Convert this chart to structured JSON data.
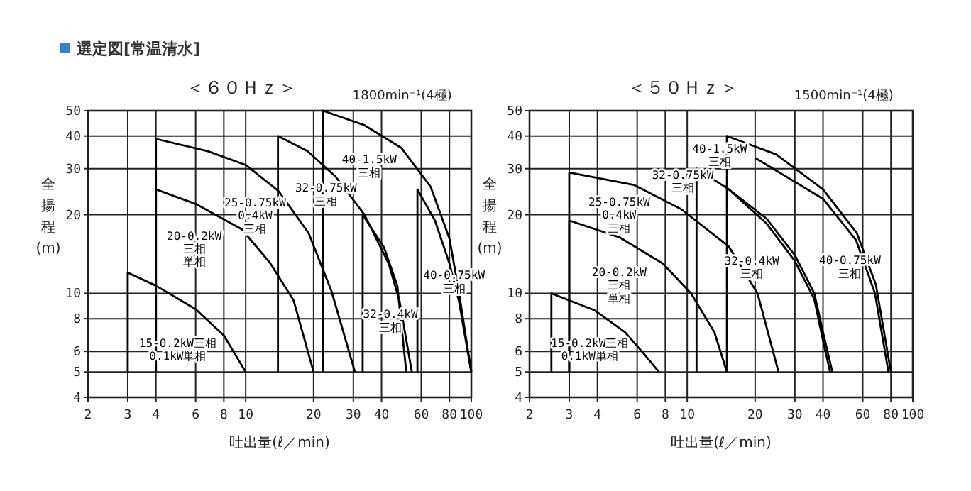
{
  "chart_data": [
    {
      "type": "line",
      "title": "＜６０Ｈｚ＞",
      "subtitle": "1800min⁻¹(4極)",
      "xlabel": "吐出量(ℓ／min)",
      "ylabel": "全揚程(m)",
      "log": "xy",
      "grid": true,
      "xlim": [
        2,
        100
      ],
      "ylim": [
        4,
        50
      ],
      "xticks": [
        2,
        3,
        4,
        6,
        8,
        10,
        20,
        30,
        40,
        60,
        80,
        100
      ],
      "yticks": [
        4,
        5,
        6,
        8,
        10,
        20,
        30,
        40,
        50
      ],
      "series": [
        {
          "color": "#000000",
          "x": [
            3,
            3,
            4,
            6,
            8,
            10
          ],
          "values": [
            5,
            12,
            10.7,
            8.7,
            6.9,
            5
          ]
        },
        {
          "color": "#000000",
          "x": [
            4,
            4,
            6,
            9.6,
            12.8,
            16.3,
            20
          ],
          "values": [
            5,
            25,
            22,
            17.6,
            13.1,
            9.4,
            5
          ]
        },
        {
          "color": "#000000",
          "x": [
            4,
            4,
            6.8,
            10,
            14,
            19,
            24,
            30.5
          ],
          "values": [
            5,
            39,
            35,
            31,
            24.6,
            17,
            10.2,
            5
          ]
        },
        {
          "color": "#000000",
          "x": [
            13.9,
            13.9,
            18.8,
            25,
            33.6,
            43,
            48,
            54.5
          ],
          "values": [
            5,
            40,
            35,
            28,
            20,
            13,
            9.4,
            5
          ]
        },
        {
          "color": "#000000",
          "x": [
            33,
            33,
            41,
            47,
            51.5
          ],
          "values": [
            5,
            20,
            15,
            10.7,
            5
          ]
        },
        {
          "color": "#000000",
          "x": [
            22,
            22,
            33.6,
            49,
            66,
            80,
            88,
            100
          ],
          "values": [
            5,
            50,
            44,
            36,
            25.6,
            16.2,
            10.2,
            5
          ]
        },
        {
          "color": "#000000",
          "x": [
            57.7,
            57.7,
            69,
            80,
            88,
            100
          ],
          "values": [
            5,
            25,
            19,
            13,
            9.4,
            5
          ]
        }
      ],
      "annotations": [
        "選定図[常温清水]",
        "15-0.2kW三相\n0.1kW単相",
        "20-0.2kW\n三相単相",
        "25-0.75kW\n0.4kW\n三相",
        "32-0.75kW\n三相",
        "40-1.5kW\n三相",
        "32-0.4kW\n三相",
        "40-0.75kW\n三相"
      ]
    },
    {
      "type": "line",
      "title": "＜５０Ｈｚ＞",
      "subtitle": "1500min⁻¹(4極)",
      "xlabel": "吐出量(ℓ／min)",
      "ylabel": "全揚程(m)",
      "log": "xy",
      "grid": true,
      "xlim": [
        2,
        100
      ],
      "ylim": [
        4,
        50
      ],
      "xticks": [
        2,
        3,
        4,
        6,
        8,
        10,
        20,
        30,
        40,
        60,
        80,
        100
      ],
      "yticks": [
        4,
        5,
        6,
        8,
        10,
        20,
        30,
        40,
        50
      ],
      "series": [
        {
          "color": "#000000",
          "x": [
            2.5,
            2.5,
            3.9,
            5.3,
            6.4,
            7.5
          ],
          "values": [
            5,
            10,
            8.6,
            7.1,
            5.9,
            5
          ]
        },
        {
          "color": "#000000",
          "x": [
            3,
            3,
            5,
            7.8,
            10.4,
            13.2,
            15
          ],
          "values": [
            5,
            19,
            16.4,
            13,
            10,
            7.1,
            5
          ]
        },
        {
          "color": "#000000",
          "x": [
            3,
            3,
            5.8,
            9.4,
            15.3,
            20.5,
            25.4
          ],
          "values": [
            5,
            29,
            26,
            21,
            15.1,
            10,
            5
          ]
        },
        {
          "color": "#000000",
          "x": [
            11,
            11,
            15.3,
            22.5,
            30,
            36.6,
            40,
            44
          ],
          "values": [
            5,
            30,
            25,
            19.3,
            14,
            10,
            7.1,
            5
          ]
        },
        {
          "color": "#000000",
          "x": [
            14.6,
            22.5,
            30,
            36.6,
            40,
            43
          ],
          "values": [
            25.9,
            18.5,
            13.3,
            9.5,
            6.6,
            5
          ]
        },
        {
          "color": "#000000",
          "x": [
            15,
            15,
            24.8,
            40,
            56.5,
            68.6,
            80
          ],
          "values": [
            5,
            40,
            34,
            25,
            17,
            10.8,
            5
          ]
        },
        {
          "color": "#000000",
          "x": [
            20,
            40,
            56,
            68,
            78
          ],
          "values": [
            33,
            23,
            16,
            10,
            5
          ]
        }
      ],
      "annotations": [
        "15-0.2kW三相\n0.1kW単相",
        "20-0.2kW\n三相単相",
        "25-0.75kW\n0.4kW\n三相",
        "32-0.75kW\n三相",
        "40-1.5kW\n三相",
        "32-0.4kW\n三相",
        "40-0.75kW\n三相"
      ]
    }
  ]
}
